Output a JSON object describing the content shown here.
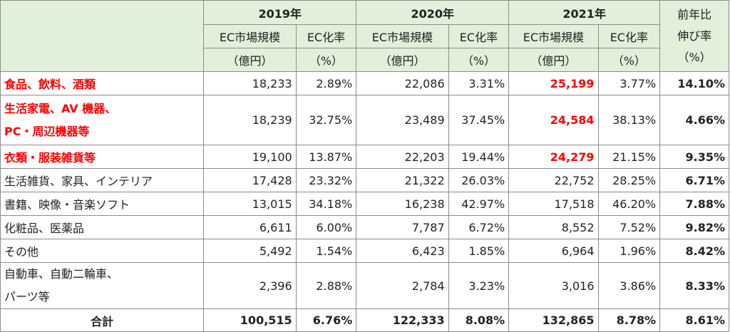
{
  "header": {
    "years": [
      "2019年",
      "2020年",
      "2021年"
    ],
    "yoy": [
      "前年比",
      "伸び率",
      "（%）"
    ],
    "market_size": [
      "EC市場規模",
      "（億円）"
    ],
    "ec_rate": [
      "EC化率",
      "（%）"
    ]
  },
  "colors": {
    "header_bg": "#e2efda",
    "highlight": "#ff0000"
  },
  "rows": [
    {
      "category": [
        "食品、飲料、酒類"
      ],
      "v2019": "18,233",
      "r2019": "2.89%",
      "v2020": "22,086",
      "r2020": "3.31%",
      "v2021": "25,199",
      "r2021": "3.77%",
      "yoy": "14.10%",
      "highlight": true
    },
    {
      "category": [
        "生活家電、AV 機器、",
        "PC・周辺機器等"
      ],
      "v2019": "18,239",
      "r2019": "32.75%",
      "v2020": "23,489",
      "r2020": "37.45%",
      "v2021": "24,584",
      "r2021": "38.13%",
      "yoy": "4.66%",
      "highlight": true
    },
    {
      "category": [
        "衣類・服装雑貨等"
      ],
      "v2019": "19,100",
      "r2019": "13.87%",
      "v2020": "22,203",
      "r2020": "19.44%",
      "v2021": "24,279",
      "r2021": "21.15%",
      "yoy": "9.35%",
      "highlight": true
    },
    {
      "category": [
        "生活雑貨、家具、インテリア"
      ],
      "v2019": "17,428",
      "r2019": "23.32%",
      "v2020": "21,322",
      "r2020": "26.03%",
      "v2021": "22,752",
      "r2021": "28.25%",
      "yoy": "6.71%",
      "highlight": false
    },
    {
      "category": [
        "書籍、映像・音楽ソフト"
      ],
      "v2019": "13,015",
      "r2019": "34.18%",
      "v2020": "16,238",
      "r2020": "42.97%",
      "v2021": "17,518",
      "r2021": "46.20%",
      "yoy": "7.88%",
      "highlight": false
    },
    {
      "category": [
        "化粧品、医薬品"
      ],
      "v2019": "6,611",
      "r2019": "6.00%",
      "v2020": "7,787",
      "r2020": "6.72%",
      "v2021": "8,552",
      "r2021": "7.52%",
      "yoy": "9.82%",
      "highlight": false
    },
    {
      "category": [
        "その他"
      ],
      "v2019": "5,492",
      "r2019": "1.54%",
      "v2020": "6,423",
      "r2020": "1.85%",
      "v2021": "6,964",
      "r2021": "1.96%",
      "yoy": "8.42%",
      "highlight": false
    },
    {
      "category": [
        "自動車、自動二輪車、",
        "パーツ等"
      ],
      "v2019": "2,396",
      "r2019": "2.88%",
      "v2020": "2,784",
      "r2020": "3.23%",
      "v2021": "3,016",
      "r2021": "3.86%",
      "yoy": "8.33%",
      "highlight": false
    }
  ],
  "total": {
    "label": "合計",
    "v2019": "100,515",
    "r2019": "6.76%",
    "v2020": "122,333",
    "r2020": "8.08%",
    "v2021": "132,865",
    "r2021": "8.78%",
    "yoy": "8.61%"
  }
}
